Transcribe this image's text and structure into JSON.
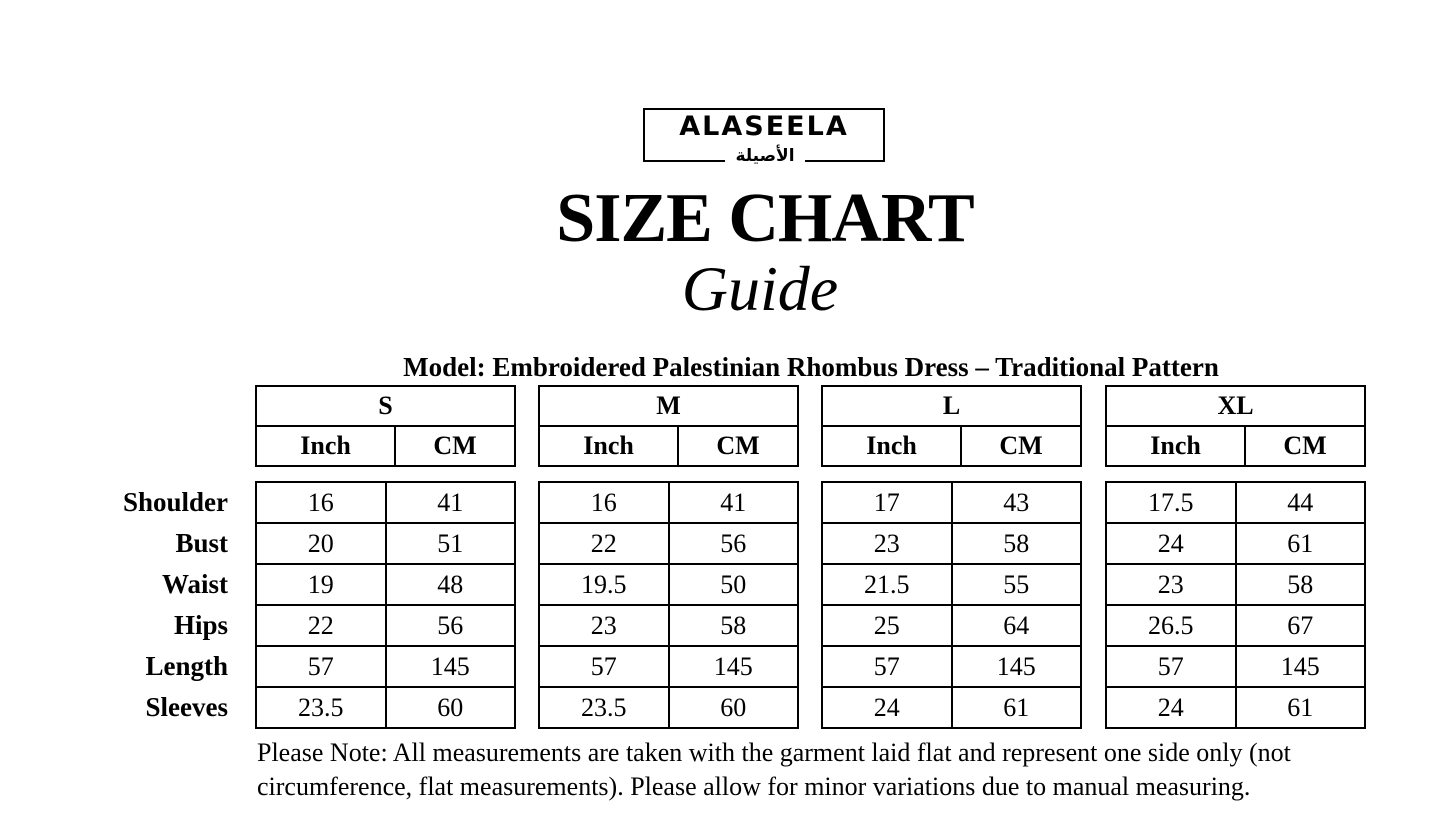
{
  "logo": {
    "text_en": "ALASEELA",
    "text_ar": "الأصيلة"
  },
  "title": {
    "main": "SIZE CHART",
    "script": "Guide"
  },
  "model": "Model: Embroidered Palestinian Rhombus Dress – Traditional Pattern",
  "units": [
    "Inch",
    "CM"
  ],
  "measurements": [
    "Shoulder",
    "Bust",
    "Waist",
    "Hips",
    "Length",
    "Sleeves"
  ],
  "sizes": [
    {
      "size": "S",
      "rows": [
        [
          "16",
          "41"
        ],
        [
          "20",
          "51"
        ],
        [
          "19",
          "48"
        ],
        [
          "22",
          "56"
        ],
        [
          "57",
          "145"
        ],
        [
          "23.5",
          "60"
        ]
      ]
    },
    {
      "size": "M",
      "rows": [
        [
          "16",
          "41"
        ],
        [
          "22",
          "56"
        ],
        [
          "19.5",
          "50"
        ],
        [
          "23",
          "58"
        ],
        [
          "57",
          "145"
        ],
        [
          "23.5",
          "60"
        ]
      ]
    },
    {
      "size": "L",
      "rows": [
        [
          "17",
          "43"
        ],
        [
          "23",
          "58"
        ],
        [
          "21.5",
          "55"
        ],
        [
          "25",
          "64"
        ],
        [
          "57",
          "145"
        ],
        [
          "24",
          "61"
        ]
      ]
    },
    {
      "size": "XL",
      "rows": [
        [
          "17.5",
          "44"
        ],
        [
          "24",
          "61"
        ],
        [
          "23",
          "58"
        ],
        [
          "26.5",
          "67"
        ],
        [
          "57",
          "145"
        ],
        [
          "24",
          "61"
        ]
      ]
    }
  ],
  "note": "Please Note: All measurements are taken with the garment laid flat and represent one side only (not circumference, flat measurements). Please allow for minor variations due to manual measuring."
}
